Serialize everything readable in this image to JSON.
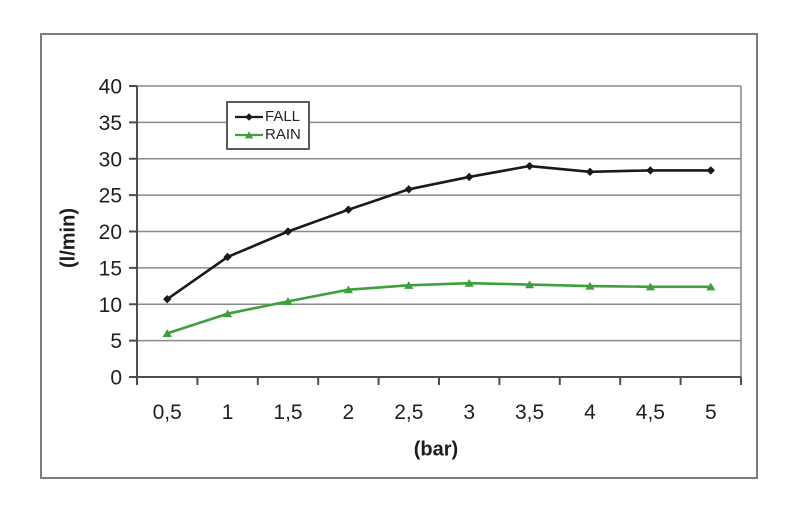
{
  "chart_data": {
    "type": "line",
    "x": [
      0.5,
      1,
      1.5,
      2,
      2.5,
      3,
      3.5,
      4,
      4.5,
      5
    ],
    "x_tick_labels": [
      "0,5",
      "1",
      "1,5",
      "2",
      "2,5",
      "3",
      "3,5",
      "4",
      "4,5",
      "5"
    ],
    "y_ticks": [
      0,
      5,
      10,
      15,
      20,
      25,
      30,
      35,
      40
    ],
    "ylim": [
      0,
      40
    ],
    "xlabel": "(bar)",
    "ylabel": "(l/min)",
    "grid": "horizontal",
    "legend_position": "inside-top-center",
    "series": [
      {
        "name": "FALL",
        "color": "#1a1a1a",
        "marker": "diamond",
        "values": [
          10.7,
          16.5,
          20,
          23,
          25.8,
          27.5,
          29,
          28.2,
          28.4,
          28.4
        ]
      },
      {
        "name": "RAIN",
        "color": "#3da03d",
        "marker": "triangle",
        "values": [
          6,
          8.7,
          10.4,
          12,
          12.6,
          12.9,
          12.7,
          12.5,
          12.4,
          12.4
        ]
      }
    ],
    "colors": {
      "gridline": "#8a8a8a",
      "axis": "#4d4d4d",
      "tick_text": "#1f1f1f",
      "frame_border": "#7d7d7d",
      "legend_border": "#5a5a5a",
      "background": "#ffffff"
    }
  }
}
